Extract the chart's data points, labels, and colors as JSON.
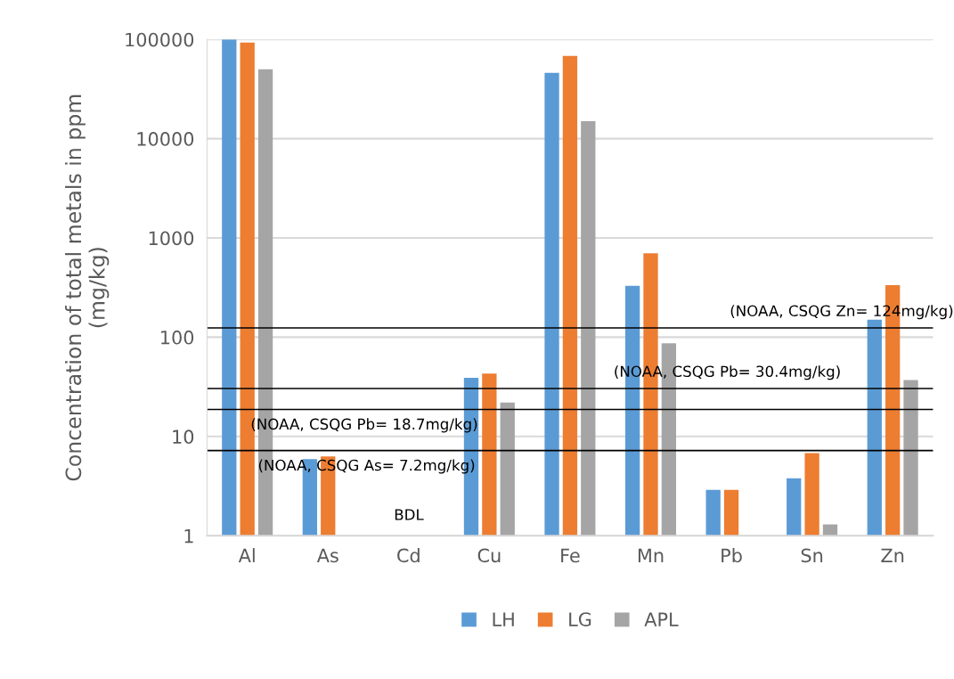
{
  "chart_data": {
    "type": "bar",
    "ylabel": "Concentration of total metals in ppm\n(mg/kg)",
    "categories": [
      "Al",
      "As",
      "Cd",
      "Cu",
      "Fe",
      "Mn",
      "Pb",
      "Sn",
      "Zn"
    ],
    "series": [
      {
        "name": "LH",
        "color": "#5b9bd5",
        "values": [
          100000,
          5.9,
          null,
          39,
          46000,
          330,
          2.9,
          3.8,
          150
        ]
      },
      {
        "name": "LG",
        "color": "#ed7d31",
        "values": [
          93000,
          6.3,
          null,
          43,
          68000,
          700,
          2.9,
          6.8,
          335
        ]
      },
      {
        "name": "APL",
        "color": "#a5a5a5",
        "values": [
          50000,
          null,
          null,
          22,
          15000,
          87,
          null,
          1.3,
          37
        ]
      }
    ],
    "log": true,
    "ylim": [
      1,
      100000
    ],
    "yticks": [
      1,
      10,
      100,
      1000,
      10000,
      100000
    ],
    "grid": "y",
    "legend": "bottom",
    "ref_lines": [
      {
        "axis": "y",
        "value": 124,
        "label": "(NOAA, CSQG Zn= 124mg/kg)",
        "color": "#000000"
      },
      {
        "axis": "y",
        "value": 30.4,
        "label": "(NOAA, CSQG Pb= 30.4mg/kg)",
        "color": "#000000"
      },
      {
        "axis": "y",
        "value": 18.7,
        "label": "(NOAA, CSQG Pb= 18.7mg/kg)",
        "color": "#000000"
      },
      {
        "axis": "y",
        "value": 7.2,
        "label": "(NOAA, CSQG As= 7.2mg/kg)",
        "color": "#000000"
      }
    ],
    "annotations": [
      "BDL"
    ]
  }
}
